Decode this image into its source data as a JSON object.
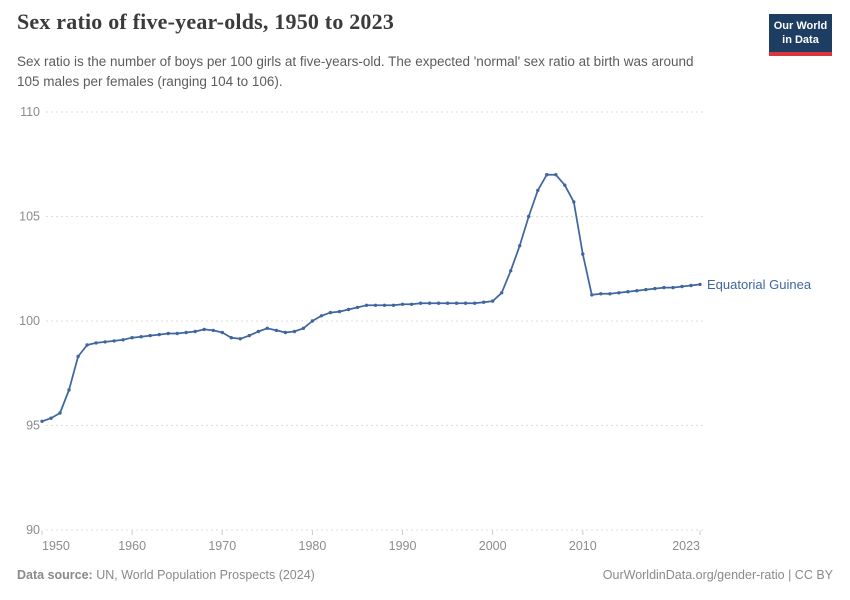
{
  "header": {
    "title": "Sex ratio of five-year-olds, 1950 to 2023",
    "subtitle": "Sex ratio is the number of boys per 100 girls at five-years-old. The expected 'normal' sex ratio at birth was around 105 males per females (ranging 104 to 106).",
    "logo": {
      "line1": "Our World",
      "line2": "in Data"
    }
  },
  "footer": {
    "source_label": "Data source:",
    "source_value": " UN, World Population Prospects (2024)",
    "link": "OurWorldinData.org/gender-ratio",
    "separator": " | ",
    "license": "CC BY"
  },
  "colors": {
    "line": "#4066a0",
    "entity_label": "#4066a0",
    "grid": "#dedede",
    "axis_tick": "#c9c9c9",
    "tick_text": "#8c8c8c",
    "logo_bg": "#1d3d63",
    "logo_stripe": "#d8353f"
  },
  "chart_data": {
    "type": "line",
    "title": "Sex ratio of five-year-olds, 1950 to 2023",
    "xlabel": "",
    "ylabel": "",
    "xlim": [
      1950,
      2023
    ],
    "ylim": [
      90,
      110
    ],
    "y_ticks": [
      90,
      95,
      100,
      105,
      110
    ],
    "x_ticks": [
      1950,
      1960,
      1970,
      1980,
      1990,
      2000,
      2010,
      2023
    ],
    "grid": "horizontal-dashed",
    "legend_position": "end-of-line-label",
    "series": [
      {
        "name": "Equatorial Guinea",
        "x": [
          1950,
          1951,
          1952,
          1953,
          1954,
          1955,
          1956,
          1957,
          1958,
          1959,
          1960,
          1961,
          1962,
          1963,
          1964,
          1965,
          1966,
          1967,
          1968,
          1969,
          1970,
          1971,
          1972,
          1973,
          1974,
          1975,
          1976,
          1977,
          1978,
          1979,
          1980,
          1981,
          1982,
          1983,
          1984,
          1985,
          1986,
          1987,
          1988,
          1989,
          1990,
          1991,
          1992,
          1993,
          1994,
          1995,
          1996,
          1997,
          1998,
          1999,
          2000,
          2001,
          2002,
          2003,
          2004,
          2005,
          2006,
          2007,
          2008,
          2009,
          2010,
          2011,
          2012,
          2013,
          2014,
          2015,
          2016,
          2017,
          2018,
          2019,
          2020,
          2021,
          2022,
          2023
        ],
        "values": [
          95.2,
          95.35,
          95.6,
          96.7,
          98.3,
          98.85,
          98.95,
          99.0,
          99.05,
          99.1,
          99.2,
          99.25,
          99.3,
          99.35,
          99.4,
          99.4,
          99.45,
          99.5,
          99.6,
          99.55,
          99.45,
          99.2,
          99.15,
          99.3,
          99.5,
          99.65,
          99.55,
          99.45,
          99.5,
          99.65,
          100.0,
          100.25,
          100.4,
          100.45,
          100.55,
          100.65,
          100.75,
          100.75,
          100.75,
          100.75,
          100.8,
          100.8,
          100.85,
          100.85,
          100.85,
          100.85,
          100.85,
          100.85,
          100.85,
          100.9,
          100.95,
          101.35,
          102.4,
          103.6,
          105.0,
          106.25,
          107.0,
          107.0,
          106.5,
          105.7,
          103.2,
          101.25,
          101.3,
          101.3,
          101.35,
          101.4,
          101.45,
          101.5,
          101.55,
          101.6,
          101.6,
          101.65,
          101.7,
          101.75
        ]
      }
    ]
  }
}
